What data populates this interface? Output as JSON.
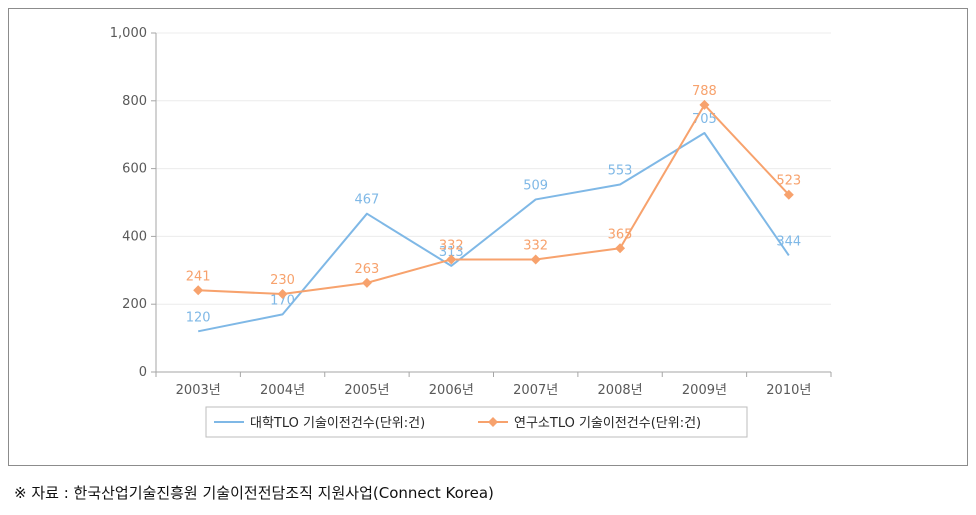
{
  "chart_data": {
    "type": "line",
    "categories": [
      "2003년",
      "2004년",
      "2005년",
      "2006년",
      "2007년",
      "2008년",
      "2009년",
      "2010년"
    ],
    "ylim": [
      0,
      1000
    ],
    "yticks": [
      0,
      200,
      400,
      600,
      800,
      1000
    ],
    "ytick_labels": [
      "0",
      "200",
      "400",
      "600",
      "800",
      "1,000"
    ],
    "grid": true,
    "legend_position": "bottom",
    "series": [
      {
        "name": "대학TLO 기술이전건수(단위:건)",
        "color": "#7fb8e6",
        "marker": "none",
        "values": [
          120,
          170,
          467,
          313,
          509,
          553,
          705,
          344
        ]
      },
      {
        "name": "연구소TLO 기술이전건수(단위:건)",
        "color": "#f7a26d",
        "marker": "diamond",
        "values": [
          241,
          230,
          263,
          332,
          332,
          365,
          788,
          523
        ]
      }
    ]
  },
  "source_note": "※  자료  :  한국산업기술진흥원  기술이전전담조직  지원사업(Connect  Korea)"
}
